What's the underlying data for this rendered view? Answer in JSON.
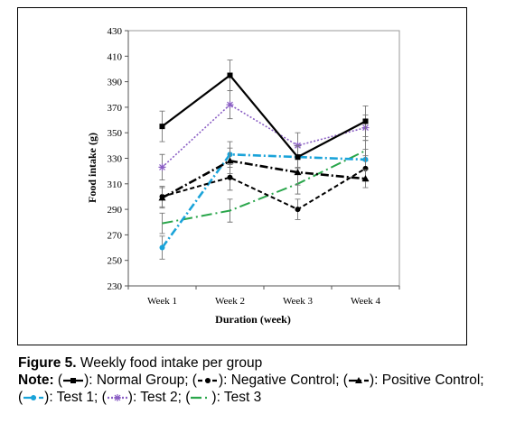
{
  "chart_data": {
    "type": "line",
    "ylabel": "Food intake (g)",
    "xlabel": "Duration (week)",
    "categories": [
      "Week 1",
      "Week 2",
      "Week 3",
      "Week 4"
    ],
    "ylim": [
      230,
      430
    ],
    "yticks": [
      230,
      250,
      270,
      290,
      310,
      330,
      350,
      370,
      390,
      410,
      430
    ],
    "grid": false,
    "series": [
      {
        "name": "Normal Group",
        "values": [
          355,
          395,
          331,
          359
        ],
        "errors": [
          12,
          12,
          9,
          12
        ],
        "color": "#000000",
        "dash": "solid",
        "marker": "square"
      },
      {
        "name": "Negative Control",
        "values": [
          300,
          315,
          290,
          322
        ],
        "errors": [
          8,
          10,
          8,
          10
        ],
        "color": "#000000",
        "dash": "short",
        "marker": "circle"
      },
      {
        "name": "Positive Control",
        "values": [
          299,
          328,
          319,
          314
        ],
        "errors": [
          8,
          10,
          10,
          7
        ],
        "color": "#000000",
        "dash": "dashdot",
        "marker": "triangle"
      },
      {
        "name": "Test 1",
        "values": [
          260,
          333,
          331,
          329
        ],
        "errors": [
          9,
          10,
          8,
          8
        ],
        "color": "#1aa3d9",
        "dash": "dashdot",
        "marker": "circle"
      },
      {
        "name": "Test 2",
        "values": [
          323,
          372,
          340,
          354
        ],
        "errors": [
          10,
          11,
          10,
          10
        ],
        "color": "#8a5ec4",
        "dash": "dotted",
        "marker": "star"
      },
      {
        "name": "Test 3",
        "values": [
          279,
          289,
          310,
          336
        ],
        "errors": [
          8,
          9,
          8,
          8
        ],
        "color": "#2aa64b",
        "dash": "longdash",
        "marker": "none"
      }
    ]
  },
  "caption": {
    "figure_label": "Figure 5.",
    "figure_text": " Weekly food intake per group",
    "note_label": "Note:",
    "legend_prefix": "(",
    "legend_suffix": "):",
    "items": [
      {
        "name": "Normal Group",
        "sep": ";"
      },
      {
        "name": "Negative Control",
        "sep": ";"
      },
      {
        "name": "Positive Control",
        "sep": ";"
      },
      {
        "name": "Test 1",
        "sep": ";"
      },
      {
        "name": "Test 2",
        "sep": ";"
      },
      {
        "name": "Test 3",
        "sep": ""
      }
    ]
  }
}
